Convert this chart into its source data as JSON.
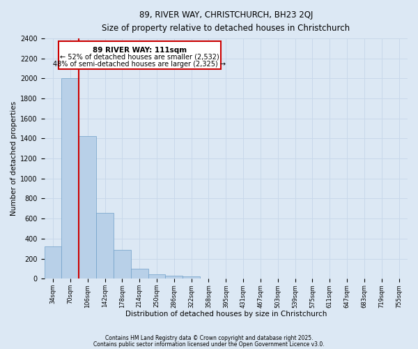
{
  "title1": "89, RIVER WAY, CHRISTCHURCH, BH23 2QJ",
  "title2": "Size of property relative to detached houses in Christchurch",
  "xlabel": "Distribution of detached houses by size in Christchurch",
  "ylabel": "Number of detached properties",
  "bar_heights": [
    325,
    2000,
    1425,
    660,
    285,
    100,
    45,
    30,
    20,
    0,
    0,
    0,
    0,
    0,
    0,
    0,
    0,
    0,
    0,
    0,
    0
  ],
  "bar_labels": [
    "34sqm",
    "70sqm",
    "106sqm",
    "142sqm",
    "178sqm",
    "214sqm",
    "250sqm",
    "286sqm",
    "322sqm",
    "358sqm",
    "395sqm",
    "431sqm",
    "467sqm",
    "503sqm",
    "539sqm",
    "575sqm",
    "611sqm",
    "647sqm",
    "683sqm",
    "719sqm",
    "755sqm"
  ],
  "bar_color": "#b8d0e8",
  "bar_edge_color": "#6fa0c8",
  "ref_line_color": "#cc0000",
  "annotation_title": "89 RIVER WAY: 111sqm",
  "annotation_line1": "← 52% of detached houses are smaller (2,532)",
  "annotation_line2": "48% of semi-detached houses are larger (2,325) →",
  "annotation_box_color": "#ffffff",
  "annotation_box_edge_color": "#cc0000",
  "ylim": [
    0,
    2400
  ],
  "yticks": [
    0,
    200,
    400,
    600,
    800,
    1000,
    1200,
    1400,
    1600,
    1800,
    2000,
    2200,
    2400
  ],
  "grid_color": "#c8d8ea",
  "bg_color": "#dce8f4",
  "footer1": "Contains HM Land Registry data © Crown copyright and database right 2025.",
  "footer2": "Contains public sector information licensed under the Open Government Licence v3.0.",
  "num_bins": 21
}
